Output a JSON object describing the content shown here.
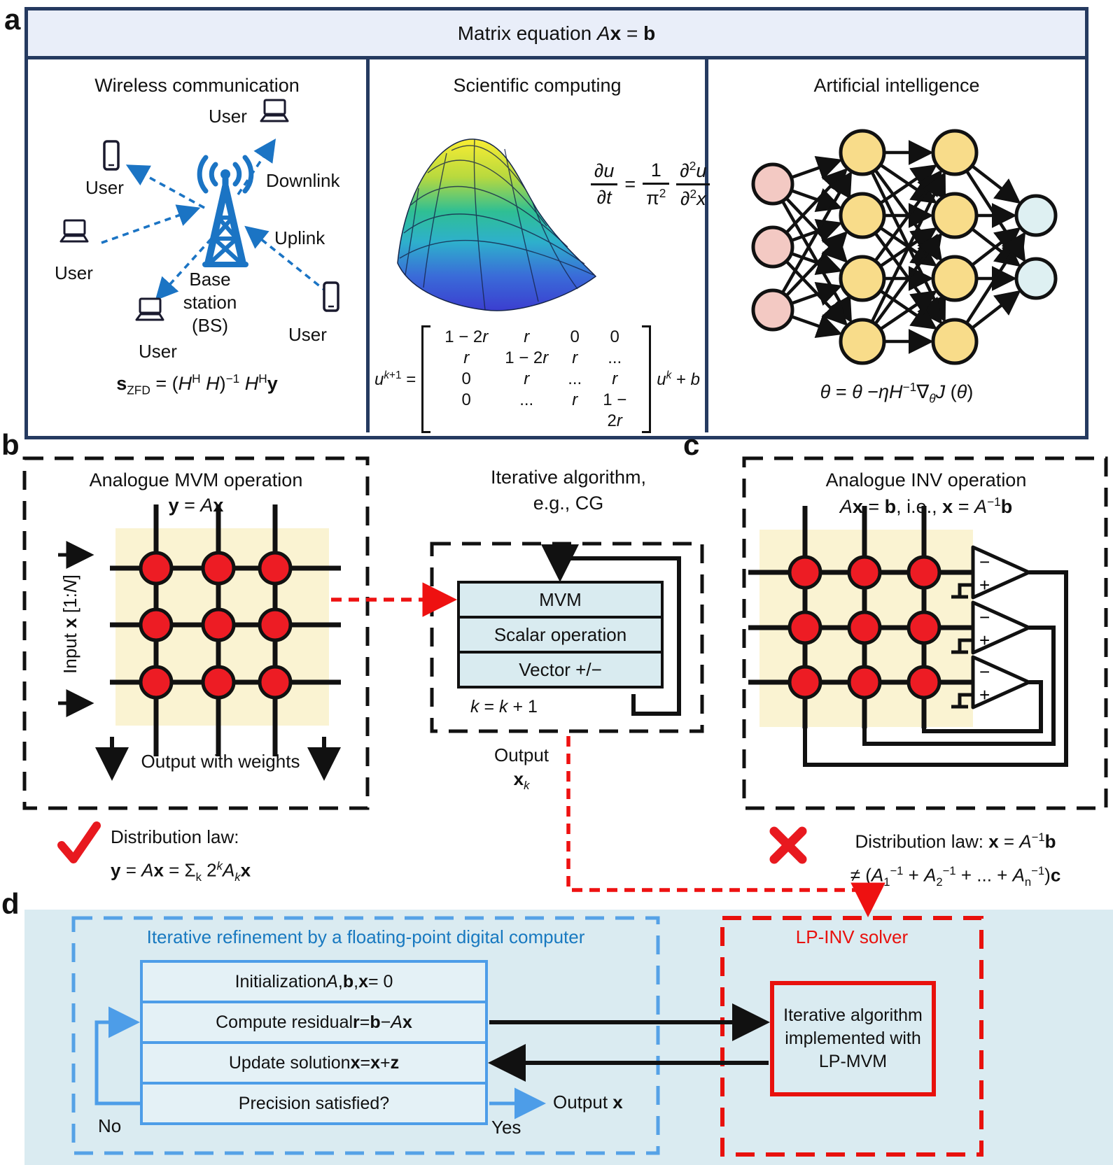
{
  "colors": {
    "navy_border": "#253a60",
    "header_bg": "#e9eef9",
    "icon_blue": "#1b74c4",
    "crossbar_yellow": "#faf3d2",
    "cell_red": "#ed1c24",
    "op_box_blue": "#d9ebf0",
    "panel_d_bg": "#daebf1",
    "flow_border_blue": "#4d9de8",
    "blue_text": "#1879c0",
    "accent_red": "#e8110d"
  },
  "panel_a": {
    "label": "a",
    "header": "Matrix equation <i>A</i><b>x</b> = <b>b</b>",
    "wireless": {
      "title": "Wireless communication",
      "user_label": "User",
      "downlink": "Downlink",
      "uplink": "Uplink",
      "base_station": [
        "Base",
        "station",
        "(BS)"
      ],
      "formula": "<b>s</b><sub>ZFD</sub> = (<i>H</i><sup>H</sup> <i>H</i>)<sup>−1</sup> <i>H</i><sup>H</sup><b>y</b>"
    },
    "scientific": {
      "title": "Scientific computing",
      "pde": {
        "f1n": "<i>∂u</i>",
        "f1d": "<i>∂t</i>",
        "eq": "=",
        "f2n": "1",
        "f2d": "π<sup>2</sup>",
        "f3n": "<i>∂</i><sup>2</sup><i>u</i>",
        "f3d": "<i>∂</i><sup>2</sup><i>x</i>"
      },
      "matrix": {
        "lhs": "<i>u</i><sup><i>k</i>+1</sup> =",
        "rows": [
          [
            "1 − 2<i>r</i>",
            "<i>r</i>",
            "0",
            "0"
          ],
          [
            "<i>r</i>",
            "1 − 2<i>r</i>",
            "<i>r</i>",
            "..."
          ],
          [
            "0",
            "<i>r</i>",
            "...",
            "<i>r</i>"
          ],
          [
            "0",
            "...",
            "<i>r</i>",
            "1 − 2<i>r</i>"
          ]
        ],
        "rhs": "<i>u</i><sup><i>k</i></sup> + <i>b</i>"
      }
    },
    "ai": {
      "title": "Artificial intelligence",
      "formula": "<i>θ</i> = <i>θ</i> −<i>ηH</i><sup>−1</sup>∇<sub><i>θ</i></sub><i>J</i> (<i>θ</i>)"
    }
  },
  "panel_b": {
    "label": "b",
    "title": "Analogue MVM operation",
    "subtitle": "<b>y</b> = <i>A</i><b>x</b>",
    "input_label": "Input <b>x</b> [1:<i>N</i>]",
    "output_label": "Output with weights",
    "law_title": "Distribution law:",
    "law_formula": "<b>y</b> = <i>A</i><b>x</b> = Σ<sub>k</sub> 2<sup><i>k</i></sup><i>A</i><sub><i>k</i></sub><b>x</b>"
  },
  "iterative": {
    "title_line1": "Iterative algorithm,",
    "title_line2": "e.g., CG",
    "steps": [
      "MVM",
      "Scalar operation",
      "Vector +/−"
    ],
    "k_label": "<i>k</i> = <i>k</i> + 1",
    "output_label": "Output",
    "output_var": "<b>x</b><sub><i>k</i></sub>"
  },
  "panel_c": {
    "label": "c",
    "title": "Analogue INV operation",
    "subtitle": "<i>A</i><b>x</b> = <b>b</b>, i.e., <b>x</b> = <i>A</i><sup>−1</sup><b>b</b>",
    "opamp_minus": "−",
    "opamp_plus": "+",
    "law_line1": "Distribution law: <b>x</b> = <i>A</i><sup>−1</sup><b>b</b>",
    "law_line2": "≠ (<i>A</i><sub>1</sub><sup>−1</sup> + <i>A</i><sub>2</sub><sup>−1</sup> + ... + <i>A</i><sub>n</sub><sup>−1</sup>)<b>c</b>"
  },
  "panel_d": {
    "label": "d",
    "title": "Iterative refinement by a floating-point digital computer",
    "steps": [
      "Initialization <i>A</i>, <b>b</b>, <b>x</b> = 0",
      "Compute residual <b>r</b> = <b>b</b> − <i>A</i><b>x</b>",
      "Update solution <b>x</b> = <b>x</b> + <b>z</b>",
      "Precision satisfied?"
    ],
    "no_label": "No",
    "yes_label": "Yes",
    "output_label": "Output <b>x</b>",
    "solver_title": "LP-INV solver",
    "solver_box_lines": [
      "Iterative algorithm",
      "implemented with",
      "LP-MVM"
    ]
  }
}
